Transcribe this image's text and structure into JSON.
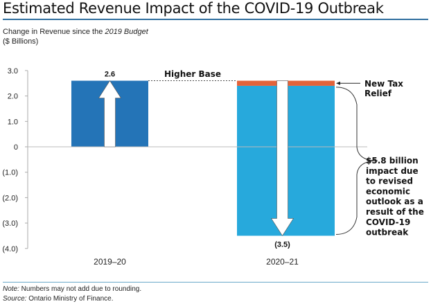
{
  "title": "Estimated Revenue Impact of the COVID-19 Outbreak",
  "subtitle": {
    "prefix": "Change in Revenue since the ",
    "italic": "2019 Budget",
    "units": "($ Billions)"
  },
  "colors": {
    "bar_2019": "#2474b7",
    "bar_2020": "#27a9dc",
    "tax_relief": "#e3633a",
    "title_rule": "#2f6f9f"
  },
  "chart_data": {
    "type": "bar",
    "title": "Estimated Revenue Impact of the COVID-19 Outbreak",
    "ylabel": "Change in Revenue since the 2019 Budget ($ Billions)",
    "xlabel": "",
    "categories": [
      "2019–20",
      "2020–21"
    ],
    "values": [
      2.6,
      -3.5
    ],
    "data_labels": [
      "2.6",
      "(3.5)"
    ],
    "segments_2020_21": {
      "new_tax_relief": [
        2.6,
        2.4
      ],
      "covid_impact": [
        2.4,
        -3.5
      ]
    },
    "ylim": [
      -4.0,
      3.0
    ],
    "yticks": [
      3.0,
      2.0,
      1.0,
      0,
      -1.0,
      -2.0,
      -3.0,
      -4.0
    ],
    "ytick_labels": [
      "3.0",
      "2.0",
      "1.0",
      "0",
      "(1.0)",
      "(2.0)",
      "(3.0)",
      "(4.0)"
    ],
    "grid": false,
    "annotations": {
      "higher_base": "Higher Base",
      "new_tax_relief": [
        "New Tax",
        "Relief"
      ],
      "impact": [
        "$5.8 billion",
        "impact due",
        "to revised",
        "economic",
        "outlook as a",
        "result of the",
        "COVID-19",
        "outbreak"
      ]
    }
  },
  "footer": {
    "note_label": "Note:",
    "note": " Numbers may not add due to rounding.",
    "source_label": "Source:",
    "source": " Ontario Ministry of Finance."
  }
}
